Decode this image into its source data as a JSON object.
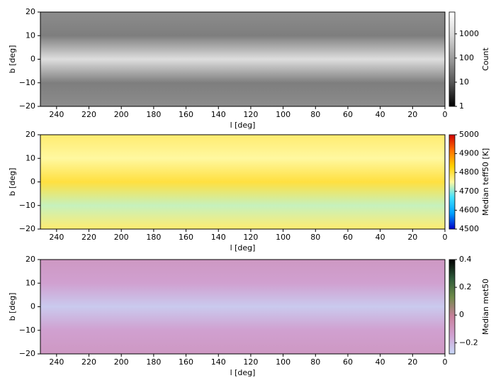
{
  "chart_data": [
    {
      "type": "heatmap",
      "xlabel": "l [deg]",
      "ylabel": "b [deg]",
      "colorbar_label": "Count",
      "xlim": [
        250,
        0
      ],
      "ylim": [
        -20,
        20
      ],
      "xticks": [
        240,
        220,
        200,
        180,
        160,
        140,
        120,
        100,
        80,
        60,
        40,
        20,
        0
      ],
      "yticks": [
        {
          "value": -20,
          "label": "−20"
        },
        {
          "value": -10,
          "label": "−10"
        },
        0,
        10,
        20
      ],
      "clim": [
        1,
        8000
      ],
      "cscale": "log",
      "cticks": [
        1,
        10,
        100,
        1000
      ],
      "colormap": [
        "#000000",
        "#555555",
        "#9a9a9a",
        "#d6d6d6",
        "#ffffff"
      ]
    },
    {
      "type": "heatmap",
      "xlabel": "l [deg]",
      "ylabel": "b [deg]",
      "colorbar_label": "Median teff50 [K]",
      "xlim": [
        250,
        0
      ],
      "ylim": [
        -20,
        20
      ],
      "xticks": [
        240,
        220,
        200,
        180,
        160,
        140,
        120,
        100,
        80,
        60,
        40,
        20,
        0
      ],
      "yticks": [
        {
          "value": -20,
          "label": "−20"
        },
        {
          "value": -10,
          "label": "−10"
        },
        0,
        10,
        20
      ],
      "clim": [
        4500,
        5000
      ],
      "cscale": "linear",
      "cticks": [
        4500,
        4600,
        4700,
        4800,
        4900,
        5000
      ],
      "colormap": [
        "#0000c8",
        "#00a0ff",
        "#40e0ff",
        "#fff8a0",
        "#ffd000",
        "#ff7000",
        "#d00000"
      ]
    },
    {
      "type": "heatmap",
      "xlabel": "l [deg]",
      "ylabel": "b [deg]",
      "colorbar_label": "Median met50",
      "xlim": [
        250,
        0
      ],
      "ylim": [
        -20,
        20
      ],
      "xticks": [
        240,
        220,
        200,
        180,
        160,
        140,
        120,
        100,
        80,
        60,
        40,
        20,
        0
      ],
      "yticks": [
        {
          "value": -20,
          "label": "−20"
        },
        {
          "value": -10,
          "label": "−10"
        },
        0,
        10,
        20
      ],
      "clim": [
        -0.28,
        0.4
      ],
      "cscale": "linear",
      "cticks": [
        {
          "value": -0.2,
          "label": "−0.2"
        },
        0,
        0.2,
        0.4
      ],
      "colormap": [
        "#c8d8f8",
        "#d0a0d0",
        "#c77f9a",
        "#6f8a4a",
        "#2e5a3a",
        "#000000"
      ]
    }
  ]
}
